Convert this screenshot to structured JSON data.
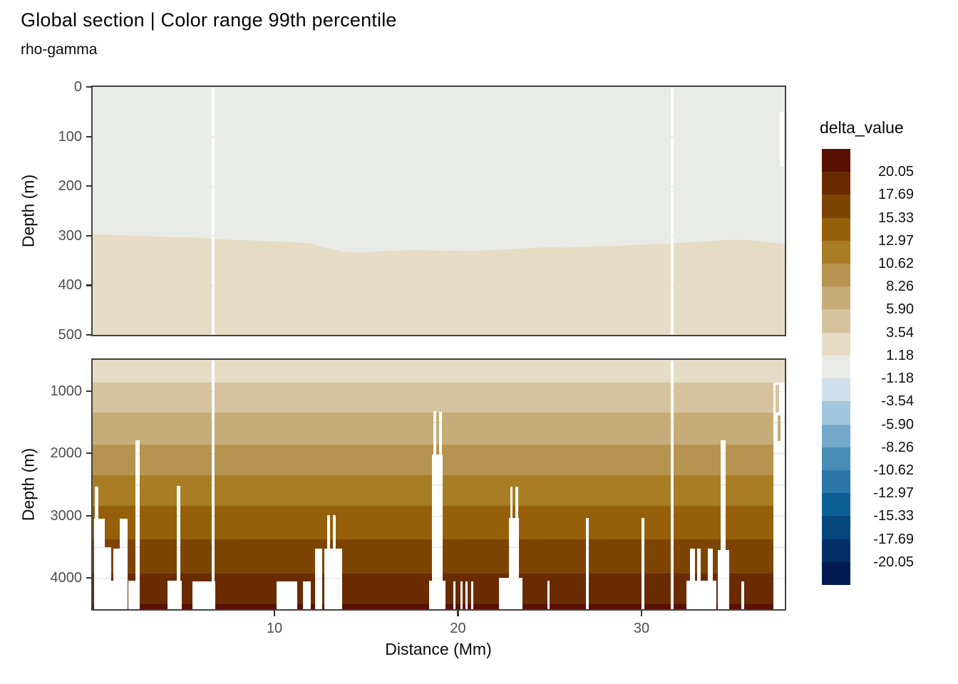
{
  "title": "Global section | Color range 99th percentile",
  "subtitle": "rho-gamma",
  "chart_data": {
    "type": "heatmap",
    "variant": "filled-contour depth section, discrete binned fill",
    "xlabel": "Distance (Mm)",
    "ylabel": "Depth (m)",
    "x_ticks": [
      "10",
      "20",
      "30"
    ],
    "x_domain_Mm": [
      0,
      37.8
    ],
    "legend": {
      "title": "delta_value",
      "bin_colors_top_to_bottom": [
        "#5a1003",
        "#6b2b01",
        "#7e4402",
        "#96600a",
        "#a87d23",
        "#b6934e",
        "#c6ac78",
        "#d6c39d",
        "#e6dcc5",
        "#e9ebe7",
        "#cfdfeb",
        "#a2c6dd",
        "#74a9cb",
        "#4a8cb8",
        "#2b77a8",
        "#0c6095",
        "#05477e",
        "#033067",
        "#021a52"
      ],
      "boundary_labels": [
        "20.05",
        "17.69",
        "15.33",
        "12.97",
        "10.62",
        "8.26",
        "5.90",
        "3.54",
        "1.18",
        "-1.18",
        "-3.54",
        "-5.90",
        "-8.26",
        "-10.62",
        "-12.97",
        "-15.33",
        "-17.69",
        "-20.05"
      ]
    },
    "panels": [
      {
        "name": "surface",
        "depth_range_m": [
          0,
          500
        ],
        "y_ticks": [
          "0",
          "100",
          "200",
          "300",
          "400",
          "500"
        ],
        "upper_fill": {
          "bin": "-1.18 to 1.18",
          "color": "#e9ebe7"
        },
        "lower_fill": {
          "bin": "1.18 to 3.54",
          "color": "#e6dcc5"
        },
        "fill_boundary_contour_Mm_depth": [
          [
            0,
            297
          ],
          [
            1.5,
            299
          ],
          [
            3,
            301
          ],
          [
            4.5,
            303
          ],
          [
            6,
            304
          ],
          [
            7.5,
            308
          ],
          [
            9,
            310
          ],
          [
            10.5,
            312
          ],
          [
            12,
            316
          ],
          [
            13,
            326
          ],
          [
            13.8,
            333
          ],
          [
            15,
            334
          ],
          [
            16,
            331
          ],
          [
            17.5,
            329
          ],
          [
            19,
            330
          ],
          [
            20.5,
            331
          ],
          [
            22,
            329
          ],
          [
            23.5,
            326
          ],
          [
            25,
            323
          ],
          [
            26,
            324
          ],
          [
            27,
            322
          ],
          [
            28.5,
            321
          ],
          [
            30,
            318
          ],
          [
            31.5,
            316
          ],
          [
            33,
            312
          ],
          [
            34.5,
            309
          ],
          [
            35.5,
            308
          ],
          [
            36.5,
            311
          ],
          [
            37.3,
            315
          ],
          [
            37.81,
            317
          ]
        ],
        "gaps": [
          {
            "x": [
              6.58,
              6.74
            ],
            "from_depth": 0,
            "to_depth": 500
          },
          {
            "x": [
              31.59,
              31.75
            ],
            "from_depth": 0,
            "to_depth": 500
          },
          {
            "x": [
              37.53,
              37.77
            ],
            "from_depth": 50,
            "to_depth": 160
          }
        ]
      },
      {
        "name": "deep",
        "depth_range_m": [
          500,
          4500
        ],
        "y_ticks": [
          "1000",
          "2000",
          "3000",
          "4000"
        ],
        "bands": [
          {
            "from": 500,
            "to": 870,
            "bin": "1.18 to 3.54",
            "color": "#e6dcc5"
          },
          {
            "from": 870,
            "to": 1340,
            "bin": "3.54 to 5.90",
            "color": "#d6c39d"
          },
          {
            "from": 1340,
            "to": 1860,
            "bin": "5.90 to 8.26",
            "color": "#c6ac78"
          },
          {
            "from": 1860,
            "to": 2350,
            "bin": "8.26 to 10.62",
            "color": "#b6934e"
          },
          {
            "from": 2350,
            "to": 2845,
            "bin": "10.62 to 12.97",
            "color": "#a87d23"
          },
          {
            "from": 2845,
            "to": 3380,
            "bin": "12.97 to 15.33",
            "color": "#96600a"
          },
          {
            "from": 3380,
            "to": 3930,
            "bin": "15.33 to 17.69",
            "color": "#7e4402"
          },
          {
            "from": 3930,
            "to": 4420,
            "bin": "17.69 to 20.05",
            "color": "#6b2b01"
          },
          {
            "from": 4420,
            "to": 4500,
            "bin": "above 20.05",
            "color": "#5a1003"
          }
        ],
        "gaps": [
          {
            "x": [
              0.21,
              0.41
            ],
            "from_depth": 2535
          },
          {
            "x": [
              0.17,
              0.76
            ],
            "from_depth": 3050
          },
          {
            "x": [
              0.76,
              1.11
            ],
            "from_depth": 3506
          },
          {
            "x": [
              1.11,
              1.26
            ],
            "from_depth": 4043
          },
          {
            "x": [
              1.22,
              1.57
            ],
            "from_depth": 3530
          },
          {
            "x": [
              1.57,
              2.0
            ],
            "from_depth": 3049
          },
          {
            "x": [
              2.04,
              2.43
            ],
            "from_depth": 4043
          },
          {
            "x": [
              2.43,
              2.66
            ],
            "from_depth": 1792
          },
          {
            "x": [
              4.17,
              4.95
            ],
            "from_depth": 4043
          },
          {
            "x": [
              4.68,
              4.87
            ],
            "from_depth": 2523
          },
          {
            "x": [
              5.53,
              6.78
            ],
            "from_depth": 4050
          },
          {
            "x": [
              6.58,
              6.74
            ],
            "from_depth": 500
          },
          {
            "x": [
              10.12,
              11.24
            ],
            "from_depth": 4050
          },
          {
            "x": [
              11.55,
              11.98
            ],
            "from_depth": 4050
          },
          {
            "x": [
              12.21,
              12.6
            ],
            "from_depth": 3530
          },
          {
            "x": [
              12.72,
              13.69
            ],
            "from_depth": 3530
          },
          {
            "x": [
              12.87,
              13.03
            ],
            "from_depth": 2990
          },
          {
            "x": [
              13.18,
              13.34
            ],
            "from_depth": 2990
          },
          {
            "x": [
              18.43,
              19.32
            ],
            "from_depth": 4043
          },
          {
            "x": [
              18.58,
              19.17
            ],
            "from_depth": 2020
          },
          {
            "x": [
              18.66,
              18.82
            ],
            "from_depth": 1320
          },
          {
            "x": [
              18.97,
              19.13
            ],
            "from_depth": 1330
          },
          {
            "x": [
              19.75,
              19.86
            ],
            "from_depth": 4050
          },
          {
            "x": [
              20.14,
              20.25
            ],
            "from_depth": 4050
          },
          {
            "x": [
              20.41,
              20.52
            ],
            "from_depth": 4050
          },
          {
            "x": [
              20.72,
              20.83
            ],
            "from_depth": 4050
          },
          {
            "x": [
              22.23,
              23.52
            ],
            "from_depth": 4000
          },
          {
            "x": [
              22.78,
              23.32
            ],
            "from_depth": 3040
          },
          {
            "x": [
              22.85,
              22.97
            ],
            "from_depth": 2530
          },
          {
            "x": [
              23.13,
              23.28
            ],
            "from_depth": 2530
          },
          {
            "x": [
              24.87,
              24.99
            ],
            "from_depth": 4043
          },
          {
            "x": [
              26.97,
              27.13
            ],
            "from_depth": 3040
          },
          {
            "x": [
              30.0,
              30.16
            ],
            "from_depth": 3040
          },
          {
            "x": [
              31.59,
              31.75
            ],
            "from_depth": 500
          },
          {
            "x": [
              32.45,
              34.08
            ],
            "from_depth": 4040
          },
          {
            "x": [
              32.64,
              32.91
            ],
            "from_depth": 3530
          },
          {
            "x": [
              33.03,
              33.22
            ],
            "from_depth": 3530
          },
          {
            "x": [
              33.61,
              33.88
            ],
            "from_depth": 3530
          },
          {
            "x": [
              34.15,
              34.78
            ],
            "from_depth": 3550
          },
          {
            "x": [
              34.31,
              34.58
            ],
            "from_depth": 1790
          },
          {
            "x": [
              35.44,
              35.59
            ],
            "from_depth": 4050
          },
          {
            "x": [
              37.18,
              37.81
            ],
            "from_depth": 870
          }
        ],
        "data_patches": [
          {
            "x": [
              37.3,
              37.49
            ],
            "depth": [
              900,
              1345
            ],
            "color": "#d6c39d"
          },
          {
            "x": [
              37.42,
              37.57
            ],
            "depth": [
              1390,
              1800
            ],
            "color": "#c6ac78"
          }
        ]
      }
    ]
  }
}
